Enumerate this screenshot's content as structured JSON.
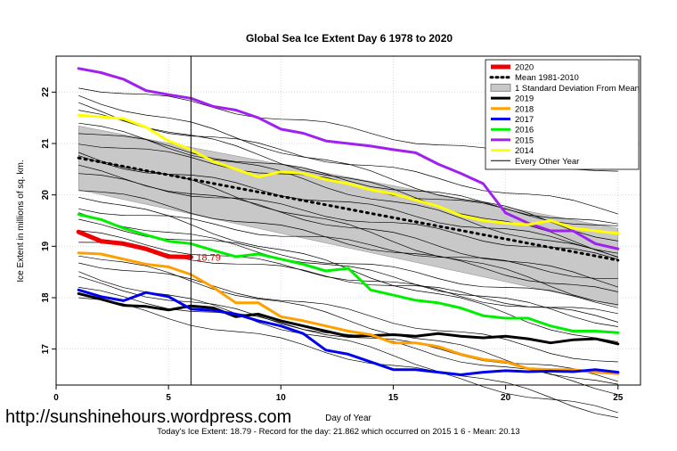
{
  "chart_data": {
    "type": "line",
    "title": "Global Sea Ice Extent Day 6 1978 to 2020",
    "xlabel": "Day of Year",
    "ylabel": "Ice Extent in millions of sq. km.",
    "xlim": [
      0,
      26
    ],
    "ylim": [
      16.3,
      22.7
    ],
    "x_ticks": [
      0,
      5,
      10,
      15,
      20,
      25
    ],
    "y_ticks": [
      17,
      18,
      19,
      20,
      21,
      22
    ],
    "grid": true,
    "legend_position": "top-right",
    "marker_day": 6,
    "current_label": "18.79",
    "legend": [
      {
        "label": "2020",
        "color": "#ee0000",
        "style": "thick"
      },
      {
        "label": "Mean 1981-2010",
        "color": "#000000",
        "style": "dotted"
      },
      {
        "label": "1 Standard Deviation From Mean",
        "color": "#bbbbbb",
        "style": "band"
      },
      {
        "label": "2019",
        "color": "#000000",
        "style": "line"
      },
      {
        "label": "2018",
        "color": "#ffa000",
        "style": "line"
      },
      {
        "label": "2017",
        "color": "#0000ee",
        "style": "line"
      },
      {
        "label": "2016",
        "color": "#00ee00",
        "style": "line"
      },
      {
        "label": "2015",
        "color": "#a020f0",
        "style": "line"
      },
      {
        "label": "2014",
        "color": "#ffff00",
        "style": "line"
      },
      {
        "label": "Every Other Year",
        "color": "#000000",
        "style": "thin"
      }
    ],
    "series": [
      {
        "name": "2020",
        "color": "#ee0000",
        "width": 5,
        "x": [
          1,
          2,
          3,
          4,
          5,
          6
        ],
        "values": [
          19.28,
          19.1,
          19.05,
          18.95,
          18.8,
          18.79
        ]
      },
      {
        "name": "2019",
        "color": "#000000",
        "width": 3,
        "x": [
          1,
          2,
          3,
          4,
          5,
          6,
          7,
          8,
          9,
          10,
          11,
          12,
          13,
          14,
          15,
          16,
          17,
          18,
          19,
          20,
          21,
          22,
          23,
          24,
          25
        ],
        "values": [
          18.08,
          17.97,
          17.85,
          17.83,
          17.76,
          17.84,
          17.8,
          17.63,
          17.68,
          17.55,
          17.45,
          17.35,
          17.25,
          17.26,
          17.28,
          17.25,
          17.3,
          17.25,
          17.22,
          17.25,
          17.2,
          17.12,
          17.18,
          17.2,
          17.1
        ]
      },
      {
        "name": "2018",
        "color": "#ffa000",
        "width": 3,
        "x": [
          1,
          2,
          3,
          4,
          5,
          6,
          7,
          8,
          9,
          10,
          11,
          12,
          13,
          14,
          15,
          16,
          17,
          18,
          19,
          20,
          21,
          22,
          23,
          24,
          25
        ],
        "values": [
          18.87,
          18.85,
          18.75,
          18.65,
          18.6,
          18.45,
          18.2,
          17.9,
          17.9,
          17.63,
          17.55,
          17.45,
          17.35,
          17.28,
          17.12,
          17.12,
          17.05,
          16.9,
          16.8,
          16.75,
          16.62,
          16.6,
          16.6,
          16.55,
          16.52
        ]
      },
      {
        "name": "2017",
        "color": "#0000ee",
        "width": 3,
        "x": [
          1,
          2,
          3,
          4,
          5,
          6,
          7,
          8,
          9,
          10,
          11,
          12,
          13,
          14,
          15,
          16,
          17,
          18,
          19,
          20,
          21,
          22,
          23,
          24,
          25
        ],
        "values": [
          18.15,
          18.02,
          17.94,
          18.1,
          18.02,
          17.78,
          17.75,
          17.68,
          17.55,
          17.45,
          17.3,
          16.98,
          16.9,
          16.75,
          16.6,
          16.6,
          16.55,
          16.5,
          16.55,
          16.58,
          16.56,
          16.57,
          16.56,
          16.6,
          16.55
        ]
      },
      {
        "name": "2016",
        "color": "#00ee00",
        "width": 3,
        "x": [
          1,
          2,
          3,
          4,
          5,
          6,
          7,
          8,
          9,
          10,
          11,
          12,
          13,
          14,
          15,
          16,
          17,
          18,
          19,
          20,
          21,
          22,
          23,
          24,
          25
        ],
        "values": [
          19.62,
          19.52,
          19.35,
          19.22,
          19.1,
          19.05,
          18.92,
          18.8,
          18.85,
          18.75,
          18.65,
          18.52,
          18.57,
          18.15,
          18.05,
          17.95,
          17.9,
          17.8,
          17.65,
          17.6,
          17.6,
          17.45,
          17.35,
          17.35,
          17.32
        ]
      },
      {
        "name": "2015",
        "color": "#a020f0",
        "width": 3,
        "x": [
          1,
          2,
          3,
          4,
          5,
          6,
          7,
          8,
          9,
          10,
          11,
          12,
          13,
          14,
          15,
          16,
          17,
          18,
          19,
          20,
          21,
          22,
          23,
          24,
          25
        ],
        "values": [
          22.46,
          22.38,
          22.25,
          22.03,
          21.95,
          21.88,
          21.72,
          21.65,
          21.5,
          21.28,
          21.2,
          21.05,
          21.0,
          20.95,
          20.88,
          20.82,
          20.6,
          20.42,
          20.22,
          19.65,
          19.45,
          19.3,
          19.3,
          19.05,
          18.95
        ]
      },
      {
        "name": "2014",
        "color": "#ffff00",
        "width": 3,
        "x": [
          1,
          2,
          3,
          4,
          5,
          6,
          7,
          8,
          9,
          10,
          11,
          12,
          13,
          14,
          15,
          16,
          17,
          18,
          19,
          20,
          21,
          22,
          23,
          24,
          25
        ],
        "values": [
          21.55,
          21.52,
          21.48,
          21.32,
          21.05,
          20.88,
          20.65,
          20.5,
          20.35,
          20.45,
          20.42,
          20.3,
          20.22,
          20.1,
          20.02,
          19.9,
          19.78,
          19.6,
          19.5,
          19.45,
          19.42,
          19.5,
          19.35,
          19.3,
          19.25
        ]
      }
    ]
  }
}
